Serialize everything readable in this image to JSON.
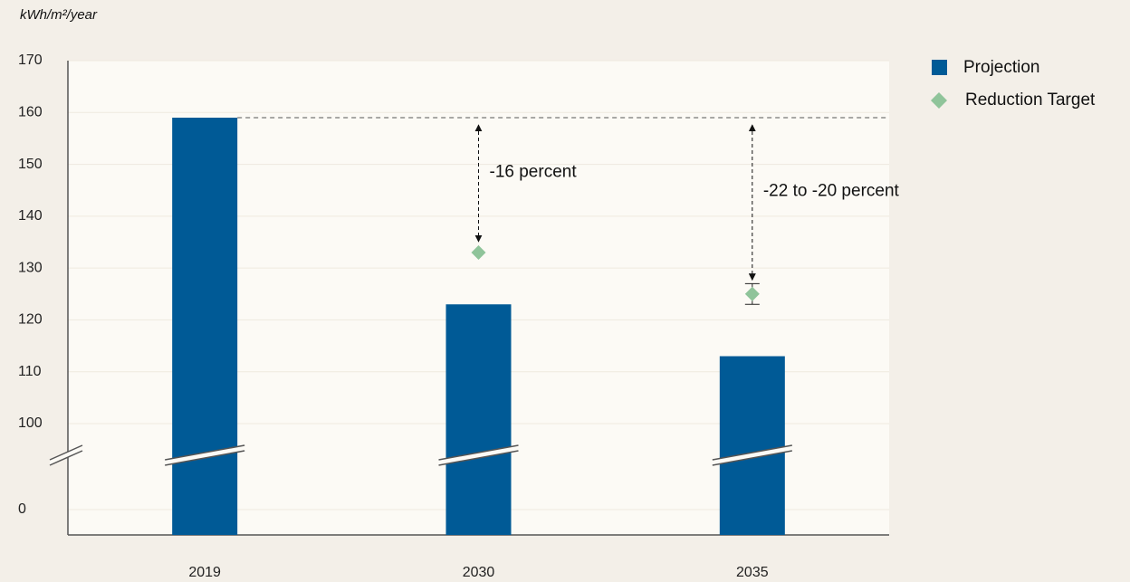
{
  "chart_data": {
    "type": "bar",
    "y_label": "kWh/m²/year",
    "categories": [
      "2019",
      "2030",
      "2035"
    ],
    "series": [
      {
        "name": "Projection",
        "color": "#005a96",
        "values": [
          159,
          123,
          113
        ]
      },
      {
        "name": "Reduction Target",
        "color": "#8fc49a",
        "type": "scatter",
        "values": [
          null,
          133,
          125
        ],
        "errors": [
          null,
          null,
          2
        ]
      }
    ],
    "annotations": [
      null,
      "-16 percent",
      "-22 to -20 percent"
    ],
    "ylim": [
      0,
      170
    ],
    "yticks": [
      0,
      100,
      110,
      120,
      130,
      140,
      150,
      160,
      170
    ],
    "broken_axis": true,
    "legend": "upper right"
  }
}
